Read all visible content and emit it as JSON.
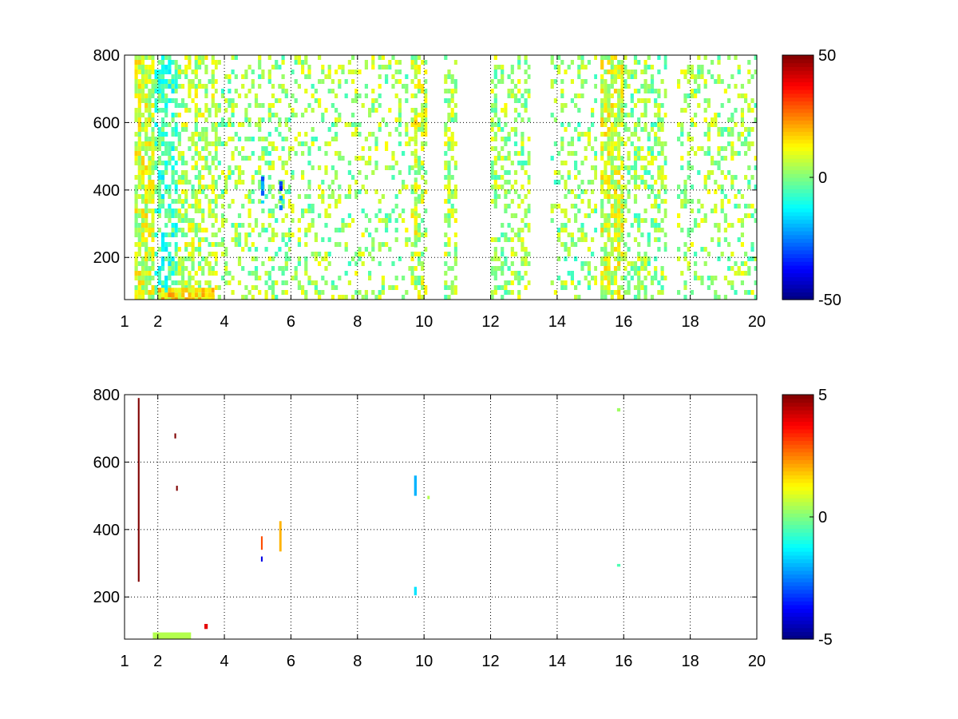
{
  "chart_data": [
    {
      "type": "heatmap",
      "title": "",
      "xlabel": "",
      "ylabel": "",
      "xlim": [
        1,
        20
      ],
      "ylim": [
        75,
        800
      ],
      "xticks": [
        1,
        2,
        4,
        6,
        8,
        10,
        12,
        14,
        16,
        18,
        20
      ],
      "yticks": [
        200,
        400,
        600,
        800
      ],
      "grid": true,
      "colormap": "jet",
      "clim": [
        -50,
        50
      ],
      "colorbar_ticks": [
        50,
        0,
        -50
      ],
      "values_description_note": "",
      "bands": [
        {
          "x": [
            1.3,
            1.9
          ],
          "y": [
            75,
            800
          ],
          "value": 8,
          "density": 0.8
        },
        {
          "x": [
            1.9,
            2.6
          ],
          "y": [
            75,
            800
          ],
          "value": -6,
          "density": 0.6
        },
        {
          "x": [
            2.6,
            3.8
          ],
          "y": [
            75,
            800
          ],
          "value": 5,
          "density": 0.5
        },
        {
          "x": [
            3.8,
            6.0
          ],
          "y": [
            75,
            800
          ],
          "value": 2,
          "density": 0.3
        },
        {
          "x": [
            6.0,
            9.6
          ],
          "y": [
            75,
            800
          ],
          "value": 3,
          "density": 0.22
        },
        {
          "x": [
            9.6,
            10.1
          ],
          "y": [
            75,
            800
          ],
          "value": 6,
          "density": 0.5
        },
        {
          "x": [
            10.6,
            11.0
          ],
          "y": [
            75,
            800
          ],
          "value": 4,
          "density": 0.5
        },
        {
          "x": [
            12.0,
            13.2
          ],
          "y": [
            75,
            800
          ],
          "value": 3,
          "density": 0.35
        },
        {
          "x": [
            13.8,
            15.2
          ],
          "y": [
            75,
            800
          ],
          "value": 2,
          "density": 0.3
        },
        {
          "x": [
            15.3,
            16.0
          ],
          "y": [
            75,
            800
          ],
          "value": 8,
          "density": 0.75
        },
        {
          "x": [
            16.0,
            17.3
          ],
          "y": [
            75,
            800
          ],
          "value": 2,
          "density": 0.45
        },
        {
          "x": [
            17.6,
            20.0
          ],
          "y": [
            75,
            800
          ],
          "value": 3,
          "density": 0.25
        },
        {
          "x": [
            2.0,
            3.7
          ],
          "y": [
            75,
            110
          ],
          "value": 15,
          "density": 0.9
        },
        {
          "x": [
            5.1,
            5.2
          ],
          "y": [
            360,
            440
          ],
          "value": -20,
          "density": 0.8
        },
        {
          "x": [
            5.65,
            5.75
          ],
          "y": [
            340,
            440
          ],
          "value": -30,
          "density": 0.8
        },
        {
          "x": [
            9.7,
            9.8
          ],
          "y": [
            230,
            650
          ],
          "value": 10,
          "density": 0.7
        }
      ]
    },
    {
      "type": "heatmap",
      "title": "",
      "xlabel": "",
      "ylabel": "",
      "xlim": [
        1,
        20
      ],
      "ylim": [
        75,
        800
      ],
      "xticks": [
        1,
        2,
        4,
        6,
        8,
        10,
        12,
        14,
        16,
        18,
        20
      ],
      "yticks": [
        200,
        400,
        600,
        800
      ],
      "grid": true,
      "colormap": "jet",
      "clim": [
        -5,
        5
      ],
      "colorbar_ticks": [
        5,
        0,
        -5
      ],
      "features": [
        {
          "x": [
            1.4,
            1.45
          ],
          "y": [
            245,
            790
          ],
          "value": 5
        },
        {
          "x": [
            2.5,
            2.55
          ],
          "y": [
            670,
            685
          ],
          "value": 5
        },
        {
          "x": [
            2.55,
            2.6
          ],
          "y": [
            515,
            530
          ],
          "value": 5
        },
        {
          "x": [
            1.85,
            3.0
          ],
          "y": [
            75,
            95
          ],
          "value": 0.5
        },
        {
          "x": [
            3.4,
            3.5
          ],
          "y": [
            105,
            120
          ],
          "value": 4
        },
        {
          "x": [
            5.1,
            5.15
          ],
          "y": [
            305,
            320
          ],
          "value": -4
        },
        {
          "x": [
            5.1,
            5.15
          ],
          "y": [
            340,
            380
          ],
          "value": 3
        },
        {
          "x": [
            5.65,
            5.72
          ],
          "y": [
            335,
            425
          ],
          "value": 2
        },
        {
          "x": [
            9.7,
            9.78
          ],
          "y": [
            500,
            560
          ],
          "value": -2
        },
        {
          "x": [
            9.7,
            9.78
          ],
          "y": [
            205,
            230
          ],
          "value": -1.5
        },
        {
          "x": [
            10.1,
            10.17
          ],
          "y": [
            490,
            500
          ],
          "value": 0.5
        },
        {
          "x": [
            15.8,
            15.9
          ],
          "y": [
            750,
            760
          ],
          "value": 0.3
        },
        {
          "x": [
            15.8,
            15.9
          ],
          "y": [
            290,
            298
          ],
          "value": -0.5
        }
      ]
    }
  ]
}
